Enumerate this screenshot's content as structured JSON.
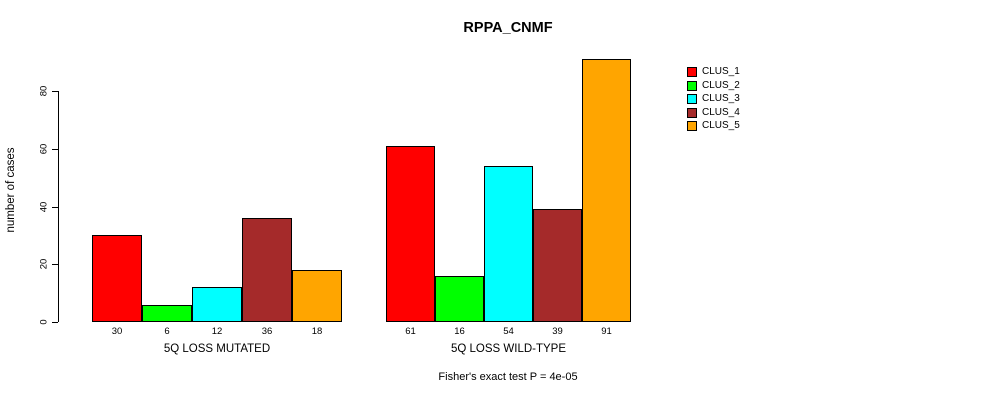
{
  "chart_data": {
    "type": "bar",
    "title": "RPPA_CNMF",
    "xlabel": "",
    "ylabel": "number of cases",
    "ylim": [
      0,
      91
    ],
    "yticks": [
      0,
      20,
      40,
      60,
      80
    ],
    "grid": false,
    "legend_position": "top-right-outside",
    "bar_value_labels_shown": true,
    "categories": [
      "5Q LOSS MUTATED",
      "5Q LOSS WILD-TYPE"
    ],
    "series": [
      {
        "name": "CLUS_1",
        "color": "#ff0000",
        "values": [
          30,
          61
        ]
      },
      {
        "name": "CLUS_2",
        "color": "#00ff00",
        "values": [
          6,
          16
        ]
      },
      {
        "name": "CLUS_3",
        "color": "#00ffff",
        "values": [
          12,
          54
        ]
      },
      {
        "name": "CLUS_4",
        "color": "#a52a2a",
        "values": [
          36,
          39
        ]
      },
      {
        "name": "CLUS_5",
        "color": "#ffa500",
        "values": [
          18,
          91
        ]
      }
    ],
    "footnote": "Fisher's exact test P = 4e-05"
  }
}
